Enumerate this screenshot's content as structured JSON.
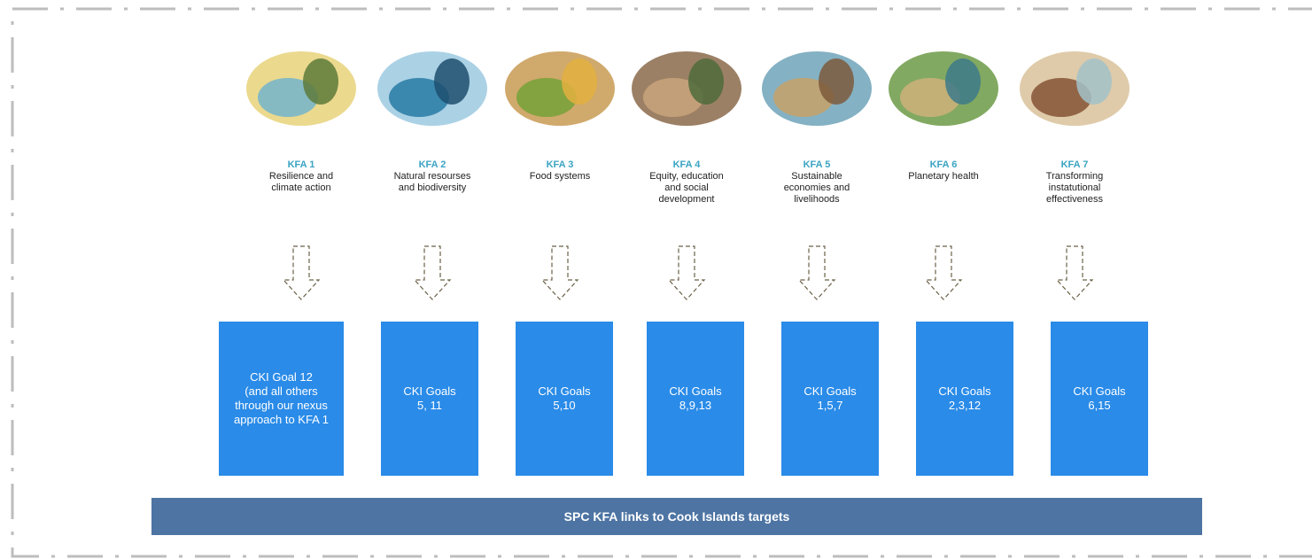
{
  "columns": [
    {
      "kfa": "KFA 1",
      "title": [
        "Resilience and",
        "climate action"
      ],
      "goal": [
        "CKI Goal 12",
        "(and all others",
        "through our nexus",
        "approach to KFA 1"
      ]
    },
    {
      "kfa": "KFA 2",
      "title": [
        "Natural resourses",
        "and biodiversity"
      ],
      "goal": [
        "CKI Goals",
        "5, 11"
      ]
    },
    {
      "kfa": "KFA 3",
      "title": [
        "Food systems"
      ],
      "goal": [
        "CKI Goals",
        "5,10"
      ]
    },
    {
      "kfa": "KFA 4",
      "title": [
        "Equity, education",
        "and social",
        "development"
      ],
      "goal": [
        "CKI Goals",
        "8,9,13"
      ]
    },
    {
      "kfa": "KFA 5",
      "title": [
        "Sustainable",
        "economies and",
        "livelihoods"
      ],
      "goal": [
        "CKI Goals",
        "1,5,7"
      ]
    },
    {
      "kfa": "KFA 6",
      "title": [
        "Planetary health"
      ],
      "goal": [
        "CKI Goals",
        "2,3,12"
      ]
    },
    {
      "kfa": "KFA 7",
      "title": [
        "Transforming",
        "instatutional",
        "effectiveness"
      ],
      "goal": [
        "CKI Goals",
        "6,15"
      ]
    }
  ],
  "footer": "SPC KFA links to Cook Islands targets"
}
